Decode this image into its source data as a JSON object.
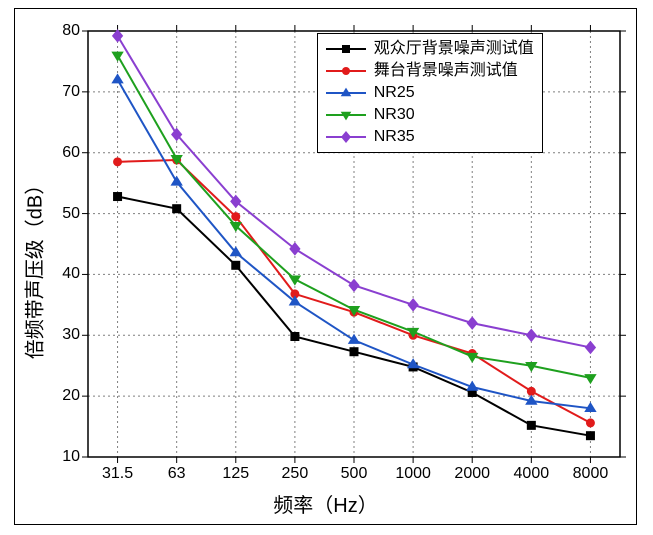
{
  "chart": {
    "type": "line",
    "xlabel": "频率（Hz）",
    "ylabel": "倍频带声压级（dB）",
    "label_fontsize": 20,
    "tick_fontsize": 16,
    "background_color": "#ffffff",
    "plot_border_color": "#000000",
    "grid_color": "#7f7f7f",
    "grid_linewidth": 1,
    "x_categories": [
      "31.5",
      "63",
      "125",
      "250",
      "500",
      "1000",
      "2000",
      "4000",
      "8000"
    ],
    "ylim": [
      10,
      80
    ],
    "ytick_step": 10,
    "yticks": [
      10,
      20,
      30,
      40,
      50,
      60,
      70,
      80
    ],
    "legend_position": "top-right",
    "legend_border_color": "#000000",
    "legend_background": "#ffffff",
    "series": [
      {
        "id": "audience",
        "label": "观众厅背景噪声测试值",
        "color": "#000000",
        "marker": "square-filled",
        "marker_size": 8,
        "line_width": 2,
        "values": [
          52.8,
          50.8,
          41.5,
          29.8,
          27.3,
          24.8,
          20.6,
          15.2,
          13.5
        ]
      },
      {
        "id": "stage",
        "label": "舞台背景噪声测试值",
        "color": "#e11b1b",
        "marker": "circle-filled",
        "marker_size": 8,
        "line_width": 2,
        "values": [
          58.5,
          58.8,
          49.5,
          36.8,
          33.8,
          30.0,
          27.0,
          20.8,
          15.6
        ]
      },
      {
        "id": "nr25",
        "label": "NR25",
        "color": "#1f55c5",
        "marker": "triangle-up-filled",
        "marker_size": 9,
        "line_width": 2,
        "values": [
          72.0,
          55.2,
          43.6,
          35.5,
          29.2,
          25.2,
          21.5,
          19.2,
          18.0
        ]
      },
      {
        "id": "nr30",
        "label": "NR30",
        "color": "#1ea01e",
        "marker": "triangle-down-filled",
        "marker_size": 9,
        "line_width": 2,
        "values": [
          76.0,
          59.0,
          48.0,
          39.2,
          34.2,
          30.6,
          26.5,
          25.0,
          23.0
        ]
      },
      {
        "id": "nr35",
        "label": "NR35",
        "color": "#8a3fd0",
        "marker": "diamond-filled",
        "marker_size": 9,
        "line_width": 2,
        "values": [
          79.2,
          63.0,
          52.0,
          44.2,
          38.2,
          35.0,
          32.0,
          30.0,
          28.0
        ]
      }
    ]
  }
}
